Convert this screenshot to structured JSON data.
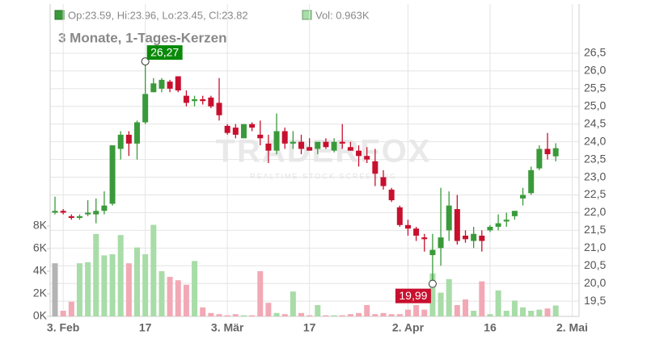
{
  "chart_data": {
    "type": "candlestick",
    "legend_ohlc": "Op:23.59, Hi:23.96, Lo:23.45, Cl:23.82",
    "legend_volume": "Vol: 0.963K",
    "subtitle": "3 Monate, 1-Tages-Kerzen",
    "watermark": "TRADERFOX",
    "watermark_sub": "REALTIME STOCK SCREENING",
    "up_color": "#3a9a3a",
    "down_color": "#c8102e",
    "volume_up_color": "#a8dca8",
    "volume_down_color": "#f2a9b5",
    "volume_first_color": "#b3b3b3",
    "categories": [
      null,
      "3. Feb",
      null,
      null,
      null,
      null,
      null,
      null,
      null,
      null,
      null,
      "17",
      null,
      null,
      null,
      null,
      null,
      null,
      null,
      null,
      null,
      "3. Mär",
      null,
      null,
      null,
      null,
      null,
      null,
      null,
      null,
      null,
      "17",
      null,
      null,
      null,
      null,
      null,
      null,
      null,
      null,
      null,
      null,
      null,
      "2. Apr",
      null,
      null,
      null,
      null,
      null,
      null,
      null,
      null,
      null,
      "16",
      null,
      null,
      null,
      null,
      null,
      null,
      null,
      null,
      null,
      "2. Mai"
    ],
    "open": [
      22.0,
      22.05,
      21.9,
      21.85,
      21.95,
      21.95,
      22.05,
      22.25,
      23.8,
      24.2,
      23.95,
      24.55,
      25.4,
      25.5,
      25.7,
      25.85,
      25.3,
      25.15,
      25.2,
      25.25,
      25.1,
      24.45,
      24.4,
      24.1,
      24.5,
      24.2,
      23.95,
      23.75,
      24.3,
      23.95,
      24.0,
      23.85,
      23.8,
      24.0,
      23.75,
      24.0,
      23.85,
      23.75,
      23.6,
      23.45,
      23.0,
      22.65,
      22.15,
      21.65,
      21.55,
      21.3,
      20.8,
      21.0,
      21.5,
      22.1,
      21.35,
      21.2,
      21.35,
      21.5,
      21.6,
      21.75,
      21.9,
      22.4,
      22.55,
      23.25,
      23.8,
      23.59,
      null,
      null
    ],
    "high": [
      22.45,
      22.1,
      21.95,
      21.95,
      22.35,
      22.4,
      22.6,
      23.9,
      24.3,
      24.3,
      24.6,
      26.27,
      25.8,
      25.8,
      25.75,
      25.85,
      25.45,
      25.3,
      25.3,
      25.3,
      25.8,
      24.5,
      24.5,
      24.5,
      24.55,
      24.6,
      24.2,
      24.8,
      24.4,
      24.3,
      24.2,
      24.1,
      23.95,
      24.1,
      24.1,
      24.5,
      24.0,
      23.9,
      23.85,
      23.8,
      23.2,
      22.7,
      22.2,
      21.8,
      21.6,
      21.4,
      21.4,
      22.7,
      22.6,
      22.5,
      21.5,
      21.6,
      21.5,
      21.65,
      21.95,
      22.0,
      22.05,
      22.7,
      23.3,
      23.9,
      24.25,
      23.96,
      null,
      null
    ],
    "low": [
      21.95,
      21.95,
      21.8,
      21.8,
      21.9,
      21.7,
      21.95,
      22.2,
      23.5,
      23.6,
      23.5,
      24.5,
      25.4,
      25.4,
      25.4,
      25.4,
      25.0,
      25.0,
      25.05,
      24.95,
      24.6,
      24.2,
      24.1,
      24.1,
      24.3,
      23.9,
      23.4,
      23.65,
      23.8,
      23.8,
      23.65,
      23.75,
      23.65,
      23.8,
      23.7,
      23.8,
      23.75,
      23.3,
      23.4,
      22.75,
      22.65,
      22.3,
      21.6,
      21.35,
      21.2,
      20.9,
      19.99,
      20.5,
      21.2,
      21.1,
      21.15,
      21.0,
      20.9,
      21.45,
      21.5,
      21.6,
      21.8,
      22.2,
      22.5,
      23.2,
      23.5,
      23.45,
      null,
      null
    ],
    "close": [
      22.05,
      22.0,
      21.85,
      21.9,
      22.0,
      22.05,
      22.2,
      23.9,
      24.2,
      23.95,
      24.55,
      25.35,
      25.65,
      25.75,
      25.5,
      25.45,
      25.1,
      25.2,
      25.15,
      25.0,
      24.75,
      24.25,
      24.2,
      24.5,
      24.4,
      24.1,
      23.75,
      24.3,
      23.95,
      24.0,
      23.8,
      23.75,
      24.0,
      23.85,
      24.0,
      23.95,
      23.75,
      23.6,
      23.5,
      23.1,
      22.75,
      22.35,
      21.65,
      21.55,
      21.35,
      21.25,
      20.95,
      21.3,
      22.2,
      21.2,
      21.25,
      21.4,
      21.2,
      21.6,
      21.7,
      21.8,
      22.05,
      22.5,
      23.2,
      23.8,
      23.65,
      23.82,
      null,
      null
    ],
    "volume": [
      4.7,
      0.5,
      1.3,
      4.7,
      4.8,
      7.3,
      5.4,
      5.5,
      7.2,
      4.7,
      6.1,
      5.5,
      8.1,
      4.0,
      3.5,
      3.2,
      2.8,
      4.9,
      0.8,
      0.3,
      0.2,
      0.1,
      0.2,
      0.1,
      0.1,
      4.0,
      1.2,
      0.3,
      0.2,
      2.2,
      0.3,
      0.1,
      1.0,
      0.1,
      0.1,
      0.1,
      0.2,
      0.3,
      1.0,
      0.2,
      0.3,
      0.2,
      0.2,
      0.6,
      1.0,
      0.6,
      3.8,
      2.1,
      3.3,
      1.0,
      1.5,
      0.5,
      3.1,
      0.2,
      2.3,
      0.5,
      1.4,
      0.8,
      0.5,
      0.6,
      0.7,
      0.963,
      null,
      null
    ],
    "annotations": [
      {
        "value": 26.27,
        "label": "26,27",
        "color": "#0a8a0a"
      },
      {
        "value": 19.99,
        "label": "19,99",
        "color": "#c8102e"
      }
    ],
    "ylim": [
      19.07,
      27.89
    ],
    "yticks": [
      {
        "value": 19.5,
        "label": "19,5"
      },
      {
        "value": 20,
        "label": "20,0"
      },
      {
        "value": 20.5,
        "label": "20,5"
      },
      {
        "value": 21,
        "label": "21,0"
      },
      {
        "value": 21.5,
        "label": "21,5"
      },
      {
        "value": 22,
        "label": "22,0"
      },
      {
        "value": 22.5,
        "label": "22,5"
      },
      {
        "value": 23,
        "label": "23,0"
      },
      {
        "value": 23.5,
        "label": "23,5"
      },
      {
        "value": 24,
        "label": "24,0"
      },
      {
        "value": 24.5,
        "label": "24,5"
      },
      {
        "value": 25,
        "label": "25,0"
      },
      {
        "value": 25.5,
        "label": "25,5"
      },
      {
        "value": 26,
        "label": "26,0"
      },
      {
        "value": 26.5,
        "label": "26,5"
      }
    ],
    "y2lim": [
      0,
      27.64
    ],
    "y2ticks": [
      {
        "value": 0,
        "label": "0K"
      },
      {
        "value": 2,
        "label": "2K"
      },
      {
        "value": 4,
        "label": "4K"
      },
      {
        "value": 6,
        "label": "6K"
      },
      {
        "value": 8,
        "label": "8K"
      }
    ],
    "grid": true
  }
}
